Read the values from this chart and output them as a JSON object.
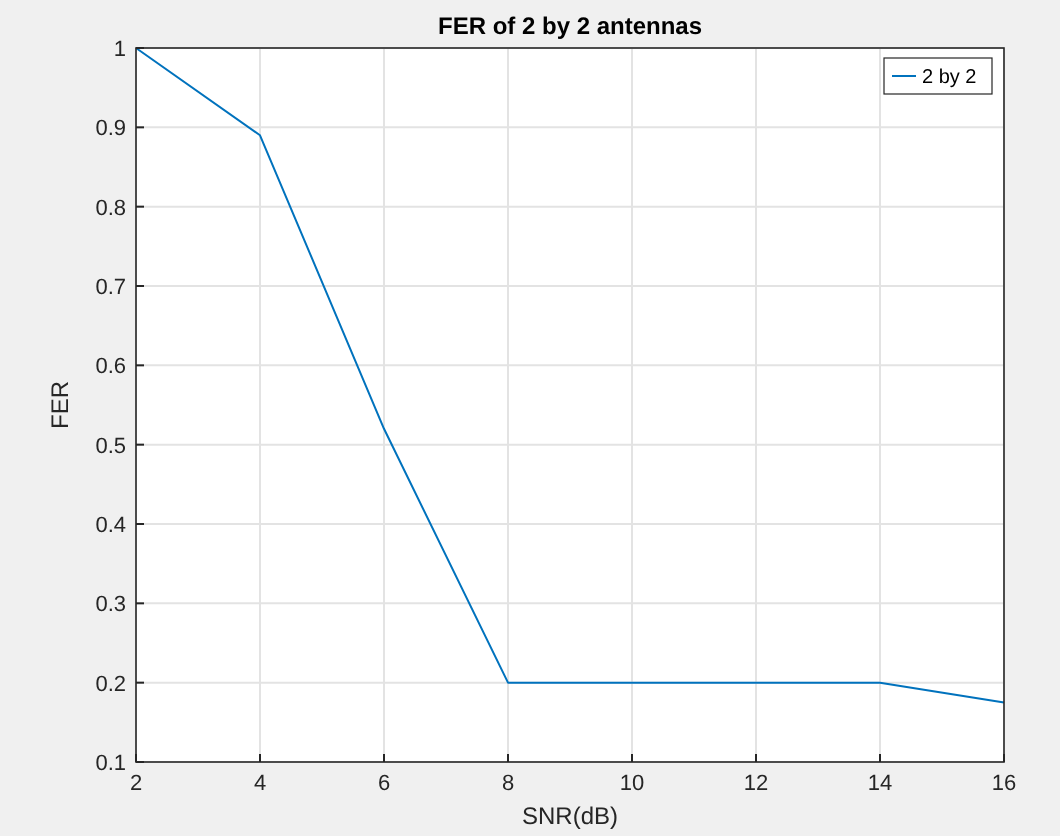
{
  "chart_data": {
    "type": "line",
    "title": "FER of 2 by 2 antennas",
    "xlabel": "SNR(dB)",
    "ylabel": "FER",
    "x": [
      2,
      4,
      6,
      8,
      10,
      12,
      14,
      16
    ],
    "series": [
      {
        "name": "2 by 2",
        "color": "#0072bd",
        "values": [
          1,
          0.89,
          0.52,
          0.2,
          0.2,
          0.2,
          0.2,
          0.175
        ]
      }
    ],
    "xlim": [
      2,
      16
    ],
    "xticks": [
      2,
      4,
      6,
      8,
      10,
      12,
      14,
      16
    ],
    "ylim": [
      0.1,
      1
    ],
    "yticks": [
      0.1,
      0.2,
      0.3,
      0.4,
      0.5,
      0.6,
      0.7,
      0.8,
      0.9,
      1
    ],
    "grid": true,
    "legend": "top right",
    "marker": "none",
    "line_style": "solid"
  }
}
